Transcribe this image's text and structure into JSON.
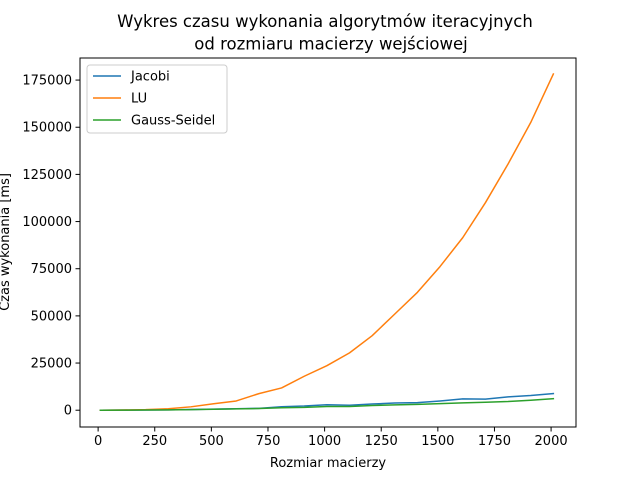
{
  "chart_data": {
    "type": "line",
    "title_lines": [
      "Wykres czasu wykonania algorytmów iteracyjnych",
      "od rozmiaru macierzy wejściowej"
    ],
    "xlabel": "Rozmiar macierzy",
    "ylabel": "Czas wykonania [ms]",
    "xlim": [
      -80,
      2110
    ],
    "ylim": [
      -8900,
      186700
    ],
    "xticks": [
      0,
      250,
      500,
      750,
      1000,
      1250,
      1500,
      1750,
      2000
    ],
    "xtick_labels": [
      "0",
      "250",
      "500",
      "750",
      "1000",
      "1250",
      "1500",
      "1750",
      "2000"
    ],
    "yticks": [
      0,
      25000,
      50000,
      75000,
      100000,
      125000,
      150000,
      175000
    ],
    "ytick_labels": [
      "0",
      "25000",
      "50000",
      "75000",
      "100000",
      "125000",
      "150000",
      "175000"
    ],
    "legend_position": "upper-left",
    "grid": false,
    "x": [
      10,
      110,
      210,
      310,
      410,
      510,
      610,
      710,
      810,
      910,
      1010,
      1110,
      1210,
      1310,
      1410,
      1510,
      1610,
      1710,
      1810,
      1910,
      2010
    ],
    "series": [
      {
        "name": "Jacobi",
        "color": "#1f77b4",
        "values": [
          0,
          50,
          100,
          200,
          400,
          600,
          800,
          1000,
          1800,
          2200,
          2900,
          2600,
          3300,
          3800,
          4000,
          4900,
          6000,
          5900,
          7100,
          7800,
          8800
        ]
      },
      {
        "name": "LU",
        "color": "#ff7f0e",
        "values": [
          0,
          100,
          300,
          800,
          1800,
          3400,
          4900,
          8800,
          11800,
          18000,
          23600,
          30400,
          39500,
          51000,
          62500,
          76200,
          91500,
          110000,
          130500,
          152500,
          178200
        ]
      },
      {
        "name": "Gauss-Seidel",
        "color": "#2ca02c",
        "values": [
          0,
          30,
          80,
          150,
          300,
          500,
          700,
          900,
          1300,
          1500,
          2000,
          2000,
          2500,
          2800,
          3100,
          3500,
          3900,
          4200,
          4600,
          5300,
          6100
        ]
      }
    ]
  }
}
